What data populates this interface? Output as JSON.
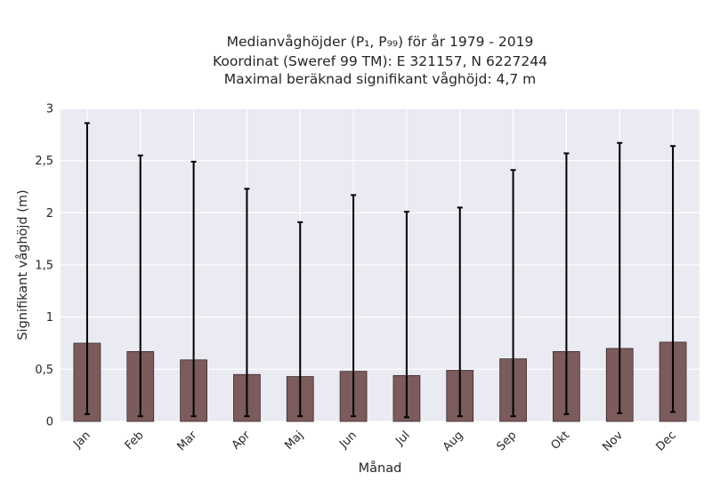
{
  "chart_data": {
    "type": "bar",
    "title": [
      "Medianvåghöjder (P₁, P₉₉) för år 1979 - 2019",
      "Koordinat (Sweref 99 TM): E 321157, N 6227244",
      "Maximal beräknad signifikant våghöjd: 4,7 m"
    ],
    "xlabel": "Månad",
    "ylabel": "Signifikant våghöjd (m)",
    "ylim": [
      0,
      3
    ],
    "yticks": [
      0,
      0.5,
      1,
      1.5,
      2,
      2.5,
      3
    ],
    "ytick_labels": [
      "0",
      "0,5",
      "1",
      "1,5",
      "2",
      "2,5",
      "3"
    ],
    "categories": [
      "Jan",
      "Feb",
      "Mar",
      "Apr",
      "Maj",
      "Jun",
      "Jul",
      "Aug",
      "Sep",
      "Okt",
      "Nov",
      "Dec"
    ],
    "values": [
      0.75,
      0.67,
      0.59,
      0.45,
      0.43,
      0.48,
      0.44,
      0.49,
      0.6,
      0.67,
      0.7,
      0.76
    ],
    "error_low": [
      0.07,
      0.05,
      0.05,
      0.05,
      0.05,
      0.05,
      0.04,
      0.05,
      0.05,
      0.07,
      0.08,
      0.09
    ],
    "error_high": [
      2.86,
      2.55,
      2.49,
      2.23,
      1.91,
      2.17,
      2.01,
      2.05,
      2.41,
      2.57,
      2.67,
      2.64
    ],
    "grid": true,
    "colors": {
      "bar": "#7b5b5b",
      "bar_edge": "#3d2a2a",
      "plot_background": "#eaeaf2",
      "grid": "#ffffff",
      "error_bar": "#000000"
    }
  }
}
